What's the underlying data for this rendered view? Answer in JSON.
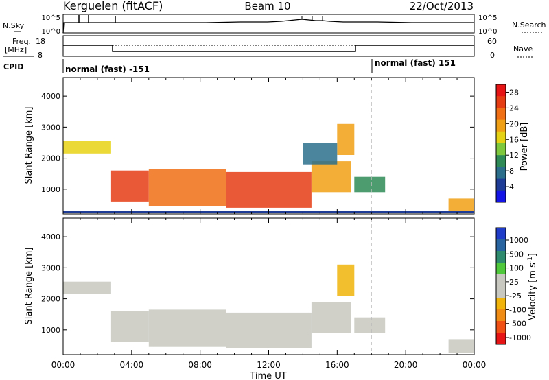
{
  "header": {
    "station": "Kerguelen (fitACF)",
    "beam": "Beam 10",
    "date": "22/Oct/2013"
  },
  "noise_panel": {
    "left_label": "N.Sky",
    "right_label": "N.Search",
    "ticks_left": [
      "10^5",
      "10^0"
    ],
    "ticks_right": [
      "10^5",
      "10^0"
    ]
  },
  "freq_panel": {
    "label_line1": "Freq.",
    "label_line2": "[MHz]",
    "ticks_left": [
      "18",
      "8"
    ],
    "ticks_right": [
      "60",
      "0"
    ],
    "right_label": "Nave"
  },
  "cpid": {
    "label": "CPID",
    "segments": [
      {
        "text": "normal (fast) -151",
        "start_hour": 0,
        "end_hour": 18
      },
      {
        "text": "normal (fast) 151",
        "start_hour": 18,
        "end_hour": 24
      }
    ]
  },
  "time_axis": {
    "label": "Time UT",
    "ticks": [
      "00:00",
      "04:00",
      "08:00",
      "12:00",
      "16:00",
      "20:00",
      "00:00"
    ]
  },
  "colors": {
    "power_scale": [
      "#1414e6",
      "#1e3c96",
      "#2a6e8c",
      "#2e8b57",
      "#7dc83c",
      "#e6d214",
      "#f0a014",
      "#f06e14",
      "#e63c14",
      "#e61414"
    ],
    "velocity_scale": [
      "#1e3cc8",
      "#2864a0",
      "#2e8b6e",
      "#50c83c",
      "#c8c8c0",
      "#c8c8c0",
      "#f0b40a",
      "#f08c14",
      "#f05014",
      "#e61414"
    ]
  },
  "chart_data": [
    {
      "type": "heatmap",
      "title": "",
      "xlabel": "",
      "ylabel": "Slant Range [km]",
      "xlim": [
        0,
        24
      ],
      "ylim": [
        200,
        4600
      ],
      "y_ticks": [
        "1000",
        "2000",
        "3000",
        "4000"
      ],
      "colorbar": {
        "label": "Power [dB]",
        "ticks": [
          "4",
          "8",
          "12",
          "16",
          "20",
          "24",
          "28"
        ],
        "range": [
          0,
          30
        ]
      },
      "regions": [
        {
          "t": [
            0.0,
            2.8
          ],
          "r": [
            2150,
            2550
          ],
          "value": 16
        },
        {
          "t": [
            2.8,
            5.0
          ],
          "r": [
            600,
            1600
          ],
          "value": 26
        },
        {
          "t": [
            5.0,
            9.5
          ],
          "r": [
            450,
            1650
          ],
          "value": 23
        },
        {
          "t": [
            9.5,
            14.5
          ],
          "r": [
            400,
            1550
          ],
          "value": 26
        },
        {
          "t": [
            14.5,
            16.8
          ],
          "r": [
            900,
            1900
          ],
          "value": 20
        },
        {
          "t": [
            16.0,
            17.0
          ],
          "r": [
            2100,
            3100
          ],
          "value": 19
        },
        {
          "t": [
            17.0,
            18.8
          ],
          "r": [
            900,
            1400
          ],
          "value": 9
        },
        {
          "t": [
            22.5,
            24.0
          ],
          "r": [
            250,
            700
          ],
          "value": 18
        },
        {
          "t": [
            14.0,
            16.0
          ],
          "r": [
            1800,
            2500
          ],
          "value": 7
        }
      ],
      "x_marker_hour": 18
    },
    {
      "type": "heatmap",
      "title": "",
      "xlabel": "Time UT",
      "ylabel": "Slant Range [km]",
      "xlim": [
        0,
        24
      ],
      "ylim": [
        200,
        4600
      ],
      "y_ticks": [
        "1000",
        "2000",
        "3000",
        "4000"
      ],
      "colorbar": {
        "label": "Velocity [m s^-1]",
        "ticks": [
          "1000",
          "500",
          "100",
          "25",
          "-25",
          "-100",
          "-500",
          "-1000"
        ],
        "range": [
          -1200,
          1200
        ]
      },
      "regions": [
        {
          "t": [
            0.0,
            2.8
          ],
          "r": [
            2150,
            2550
          ],
          "value": 0
        },
        {
          "t": [
            2.8,
            5.0
          ],
          "r": [
            600,
            1600
          ],
          "value": 0
        },
        {
          "t": [
            5.0,
            9.5
          ],
          "r": [
            450,
            1650
          ],
          "value": 0
        },
        {
          "t": [
            9.5,
            14.5
          ],
          "r": [
            400,
            1550
          ],
          "value": 0
        },
        {
          "t": [
            14.5,
            16.8
          ],
          "r": [
            900,
            1900
          ],
          "value": 0
        },
        {
          "t": [
            16.0,
            17.0
          ],
          "r": [
            2100,
            3100
          ],
          "value": -300
        },
        {
          "t": [
            17.0,
            18.8
          ],
          "r": [
            900,
            1400
          ],
          "value": -150
        },
        {
          "t": [
            22.5,
            24.0
          ],
          "r": [
            250,
            700
          ],
          "value": -200
        }
      ],
      "x_marker_hour": 18
    }
  ]
}
